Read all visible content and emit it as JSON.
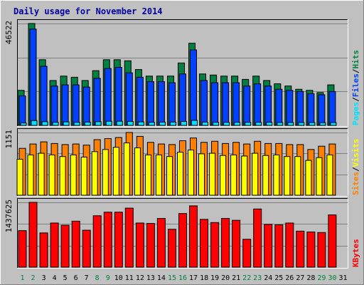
{
  "chart_data": {
    "type": "bar",
    "title": "Daily usage for November 2014",
    "colors": {
      "background": "#c0c0c0",
      "panel": "#c0c0c0",
      "gridline": "#808080",
      "hits": "#008040",
      "files": "#0040ff",
      "pages": "#00e0ff",
      "visits": "#ff8000",
      "sites": "#ffff00",
      "kbytes": "#ff0000",
      "weekend_day": "#008040",
      "weekday": "#000000",
      "title": "#0000a0"
    },
    "x": {
      "days": [
        "1",
        "2",
        "3",
        "4",
        "5",
        "6",
        "7",
        "8",
        "9",
        "10",
        "11",
        "12",
        "13",
        "14",
        "15",
        "16",
        "17",
        "18",
        "19",
        "20",
        "21",
        "22",
        "23",
        "24",
        "25",
        "26",
        "27",
        "28",
        "29",
        "30",
        "31"
      ],
      "weekend": [
        true,
        true,
        false,
        false,
        false,
        false,
        false,
        true,
        true,
        false,
        false,
        false,
        false,
        false,
        true,
        true,
        false,
        false,
        false,
        false,
        false,
        true,
        true,
        false,
        false,
        false,
        false,
        false,
        true,
        true,
        false
      ]
    },
    "panels": [
      {
        "id": "hits_files_pages",
        "max_label": "46522",
        "ymax": 46522,
        "legend": [
          {
            "text": "Pages",
            "color": "#00e0ff"
          },
          {
            "text": "/",
            "color": "#000000"
          },
          {
            "text": "Files",
            "color": "#0040ff"
          },
          {
            "text": "/",
            "color": "#000000"
          },
          {
            "text": "Hits",
            "color": "#008040"
          }
        ],
        "series": [
          {
            "name": "Hits",
            "color": "#008040",
            "values": [
              16000,
              46522,
              30000,
              20500,
              22500,
              22000,
              20500,
              25000,
              30000,
              30000,
              29500,
              25500,
              22500,
              22500,
              22500,
              28500,
              37500,
              23500,
              23000,
              22500,
              22500,
              21000,
              22500,
              20500,
              19000,
              18000,
              16500,
              16000,
              15000,
              18500,
              null
            ]
          },
          {
            "name": "Files",
            "color": "#0040ff",
            "values": [
              13500,
              44000,
              27000,
              18000,
              18500,
              18500,
              17500,
              21500,
              26000,
              26500,
              24000,
              22000,
              20000,
              20000,
              19500,
              23500,
              34500,
              20500,
              19500,
              19500,
              19500,
              18000,
              19000,
              18000,
              16500,
              16000,
              15500,
              14500,
              14000,
              15500,
              null
            ]
          },
          {
            "name": "Pages",
            "color": "#00e0ff",
            "values": [
              1100,
              2200,
              1700,
              1400,
              1600,
              1400,
              1500,
              1700,
              1900,
              1900,
              1800,
              1600,
              1400,
              1500,
              1500,
              1800,
              2300,
              1500,
              1400,
              1400,
              1400,
              1400,
              1400,
              1400,
              1300,
              1300,
              1300,
              1300,
              1200,
              1300,
              null
            ]
          }
        ]
      },
      {
        "id": "visits_sites",
        "max_label": "1151",
        "ymax": 1151,
        "legend": [
          {
            "text": "Sites",
            "color": "#ff8000"
          },
          {
            "text": "/",
            "color": "#000000"
          },
          {
            "text": "Visits",
            "color": "#ffff00"
          }
        ],
        "series": [
          {
            "name": "Visits",
            "color": "#ff8000",
            "values": [
              860,
              940,
              980,
              950,
              930,
              940,
              920,
              1020,
              1040,
              1060,
              1151,
              1080,
              970,
              940,
              930,
              1000,
              1050,
              970,
              990,
              950,
              970,
              940,
              990,
              950,
              950,
              930,
              930,
              840,
              900,
              940,
              null
            ]
          },
          {
            "name": "Sites",
            "color": "#ffff00",
            "values": [
              660,
              740,
              770,
              740,
              710,
              740,
              700,
              800,
              840,
              880,
              960,
              870,
              740,
              740,
              710,
              790,
              830,
              760,
              770,
              730,
              740,
              720,
              770,
              730,
              740,
              710,
              710,
              640,
              690,
              740,
              null
            ]
          }
        ]
      },
      {
        "id": "kbytes",
        "max_label": "1437625",
        "ymax": 1437625,
        "legend": [
          {
            "text": "KBytes",
            "color": "#ff0000"
          }
        ],
        "series": [
          {
            "name": "KBytes",
            "color": "#ff0000",
            "values": [
              810000,
              1437625,
              760000,
              980000,
              930000,
              1020000,
              820000,
              1140000,
              1220000,
              1220000,
              1310000,
              980000,
              970000,
              1080000,
              840000,
              1190000,
              1360000,
              1060000,
              990000,
              1080000,
              1040000,
              620000,
              1290000,
              950000,
              940000,
              980000,
              800000,
              780000,
              770000,
              1160000,
              null
            ]
          }
        ]
      }
    ]
  }
}
